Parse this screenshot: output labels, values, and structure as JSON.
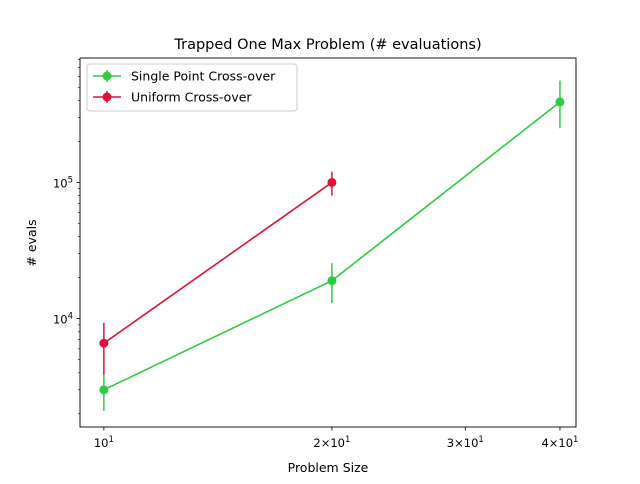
{
  "chart_data": {
    "type": "line",
    "title": "Trapped One Max Problem (# evaluations)",
    "xlabel": "Problem Size",
    "ylabel": "# evals",
    "xscale": "log",
    "yscale": "log",
    "xlim": [
      9.3,
      42.0
    ],
    "ylim": [
      1600,
      820000
    ],
    "xticks": [
      {
        "value": 10,
        "base": "10",
        "exp": "1"
      },
      {
        "value": 20,
        "base": "2×10",
        "exp": "1"
      },
      {
        "value": 30,
        "base": "3×10",
        "exp": "1"
      },
      {
        "value": 40,
        "base": "4×10",
        "exp": "1"
      }
    ],
    "yticks": [
      {
        "value": 10000,
        "base": "10",
        "exp": "4"
      },
      {
        "value": 100000,
        "base": "10",
        "exp": "5"
      }
    ],
    "legend_position": "top-left",
    "grid": false,
    "series": [
      {
        "name": "Single Point Cross-over",
        "color": "#2ecc40",
        "points": [
          {
            "x": 10,
            "y": 3000,
            "err_low": 2100,
            "err_high": 3950
          },
          {
            "x": 20,
            "y": 19000,
            "err_low": 13000,
            "err_high": 25500
          },
          {
            "x": 40,
            "y": 390000,
            "err_low": 250000,
            "err_high": 560000
          }
        ]
      },
      {
        "name": "Uniform Cross-over",
        "color": "#dc143c",
        "points": [
          {
            "x": 10,
            "y": 6600,
            "err_low": 3900,
            "err_high": 9300
          },
          {
            "x": 20,
            "y": 100000,
            "err_low": 80000,
            "err_high": 120000
          }
        ]
      }
    ]
  }
}
